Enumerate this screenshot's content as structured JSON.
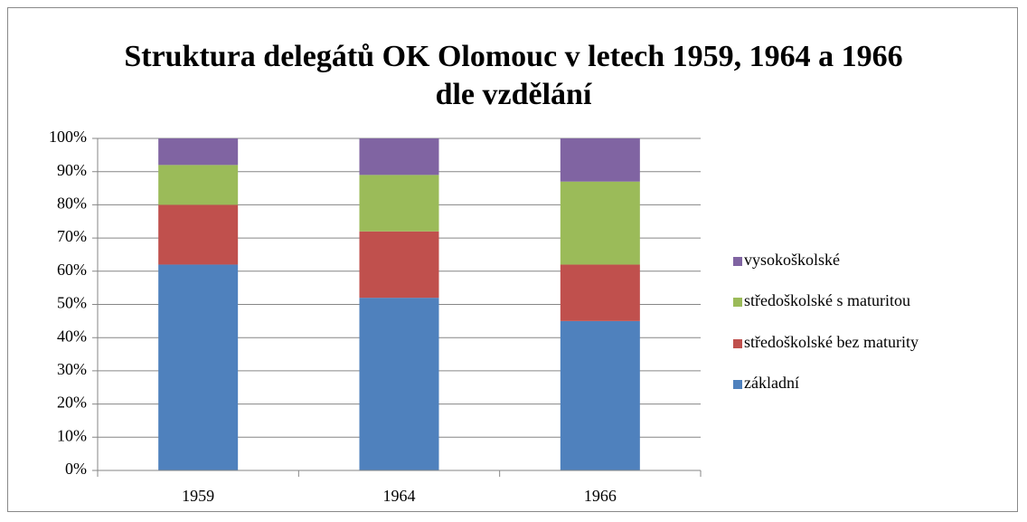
{
  "chart_data": {
    "type": "stacked_bar",
    "title": "Struktura delegátů OK Olomouc v letech 1959, 1964 a 1966 dle vzdělání",
    "categories": [
      "1959",
      "1964",
      "1966"
    ],
    "series": [
      {
        "name": "základní",
        "color": "#4f81bd",
        "values": [
          62,
          52,
          45
        ]
      },
      {
        "name": "středoškolské bez maturity",
        "color": "#c0504d",
        "values": [
          18,
          20,
          17
        ]
      },
      {
        "name": "středoškolské s maturitou",
        "color": "#9bbb59",
        "values": [
          12,
          17,
          25
        ]
      },
      {
        "name": "vysokoškolské",
        "color": "#8064a2",
        "values": [
          8,
          11,
          13
        ]
      }
    ],
    "ylim": [
      0,
      100
    ],
    "yticks": [
      {
        "value": 0,
        "label": "0%"
      },
      {
        "value": 10,
        "label": "10%"
      },
      {
        "value": 20,
        "label": "20%"
      },
      {
        "value": 30,
        "label": "30%"
      },
      {
        "value": 40,
        "label": "40%"
      },
      {
        "value": 50,
        "label": "50%"
      },
      {
        "value": 60,
        "label": "60%"
      },
      {
        "value": 70,
        "label": "70%"
      },
      {
        "value": 80,
        "label": "80%"
      },
      {
        "value": 90,
        "label": "90%"
      },
      {
        "value": 100,
        "label": "100%"
      }
    ],
    "grid": true,
    "legend": "right"
  }
}
